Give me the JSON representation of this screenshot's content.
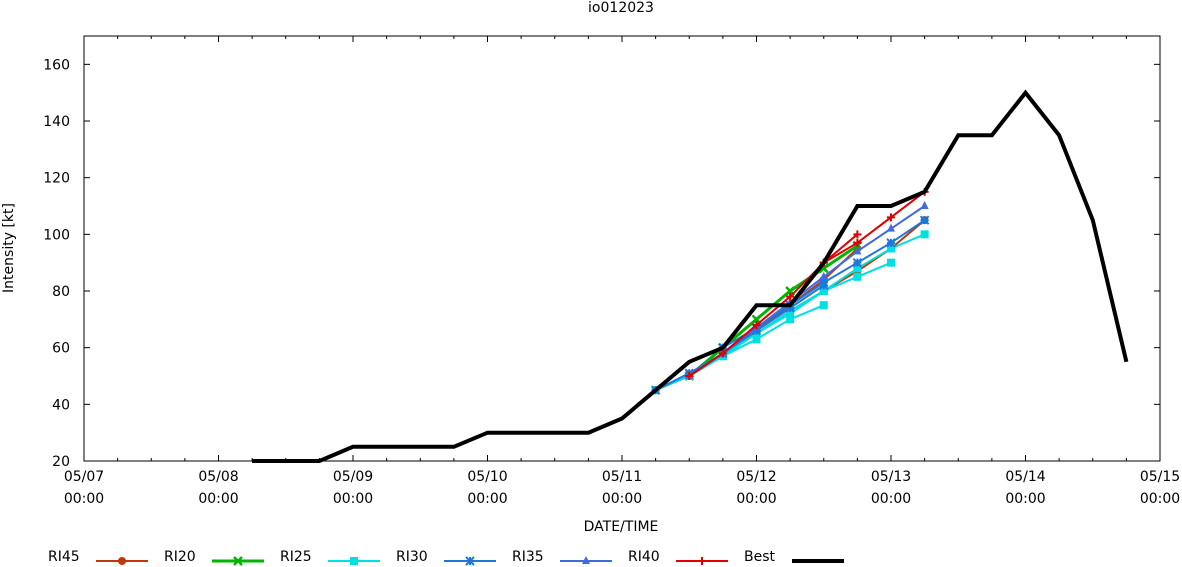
{
  "chart_data": {
    "type": "line",
    "title": "io012023",
    "xlabel": "DATE/TIME",
    "ylabel": "Intensity [kt]",
    "ylim": [
      20,
      170
    ],
    "xlim_hours": [
      0,
      192
    ],
    "x_unit": "hours since 05/07 00:00",
    "grid": false,
    "legend_position": "bottom",
    "x_ticks": [
      {
        "hour": 0,
        "date": "05/07",
        "time": "00:00"
      },
      {
        "hour": 24,
        "date": "05/08",
        "time": "00:00"
      },
      {
        "hour": 48,
        "date": "05/09",
        "time": "00:00"
      },
      {
        "hour": 72,
        "date": "05/10",
        "time": "00:00"
      },
      {
        "hour": 96,
        "date": "05/11",
        "time": "00:00"
      },
      {
        "hour": 120,
        "date": "05/12",
        "time": "00:00"
      },
      {
        "hour": 144,
        "date": "05/13",
        "time": "00:00"
      },
      {
        "hour": 168,
        "date": "05/14",
        "time": "00:00"
      },
      {
        "hour": 192,
        "date": "05/15",
        "time": "00:00"
      }
    ],
    "y_ticks": [
      20,
      40,
      60,
      80,
      100,
      120,
      140,
      160
    ],
    "series": [
      {
        "name": "RI45",
        "color": "#c0390b",
        "marker": "circle",
        "width": 2,
        "lines": [
          {
            "x": [
              102,
              108,
              114,
              120,
              126,
              132,
              138
            ],
            "y": [
              45,
              50,
              57,
              66,
              75,
              84,
              95
            ]
          },
          {
            "x": [
              114,
              120,
              126,
              132,
              138,
              144,
              150
            ],
            "y": [
              58,
              65,
              73,
              80,
              87,
              95,
              105
            ]
          }
        ]
      },
      {
        "name": "RI20",
        "color": "#00b400",
        "marker": "x",
        "width": 3,
        "lines": [
          {
            "x": [
              108,
              114,
              120,
              126,
              132,
              138
            ],
            "y": [
              50,
              60,
              70,
              80,
              88,
              96
            ]
          }
        ]
      },
      {
        "name": "RI25",
        "color": "#00e0e0",
        "marker": "square",
        "width": 2,
        "lines": [
          {
            "x": [
              102,
              108,
              114,
              120,
              126,
              132
            ],
            "y": [
              45,
              50,
              57,
              63,
              70,
              75
            ]
          },
          {
            "x": [
              108,
              114,
              120,
              126,
              132,
              138,
              144
            ],
            "y": [
              50,
              57,
              65,
              73,
              80,
              85,
              90
            ]
          },
          {
            "x": [
              114,
              120,
              126,
              132,
              138,
              144,
              150
            ],
            "y": [
              58,
              65,
              72,
              80,
              88,
              95,
              100
            ]
          }
        ]
      },
      {
        "name": "RI30",
        "color": "#1e78d8",
        "marker": "star",
        "width": 2,
        "lines": [
          {
            "x": [
              102,
              108,
              114,
              120,
              126,
              132
            ],
            "y": [
              45,
              51,
              58,
              66,
              74,
              82
            ]
          },
          {
            "x": [
              114,
              120,
              126,
              132,
              138,
              144,
              150
            ],
            "y": [
              60,
              67,
              75,
              83,
              90,
              97,
              105
            ]
          }
        ]
      },
      {
        "name": "RI35",
        "color": "#4169e1",
        "marker": "triangle",
        "width": 2,
        "lines": [
          {
            "x": [
              108,
              114,
              120,
              126,
              132,
              138,
              144,
              150
            ],
            "y": [
              50,
              58,
              67,
              76,
              85,
              94,
              102,
              110
            ]
          }
        ]
      },
      {
        "name": "RI40",
        "color": "#e00000",
        "marker": "plus",
        "width": 2,
        "lines": [
          {
            "x": [
              108,
              114,
              120,
              126,
              132,
              138
            ],
            "y": [
              50,
              58,
              68,
              78,
              90,
              100
            ]
          },
          {
            "x": [
              132,
              138,
              144,
              150
            ],
            "y": [
              90,
              97,
              106,
              115
            ]
          }
        ]
      },
      {
        "name": "Best",
        "color": "#000000",
        "marker": "none",
        "width": 4,
        "lines": [
          {
            "x": [
              30,
              36,
              42,
              48,
              54,
              60,
              66,
              72,
              78,
              84,
              90,
              96,
              102,
              108,
              114,
              120,
              126,
              132,
              138,
              144,
              150,
              156,
              162,
              168,
              174,
              180,
              186
            ],
            "y": [
              20,
              20,
              20,
              25,
              25,
              25,
              25,
              30,
              30,
              30,
              30,
              35,
              45,
              55,
              60,
              75,
              75,
              90,
              110,
              110,
              115,
              135,
              135,
              150,
              135,
              105,
              55
            ]
          }
        ]
      }
    ]
  }
}
